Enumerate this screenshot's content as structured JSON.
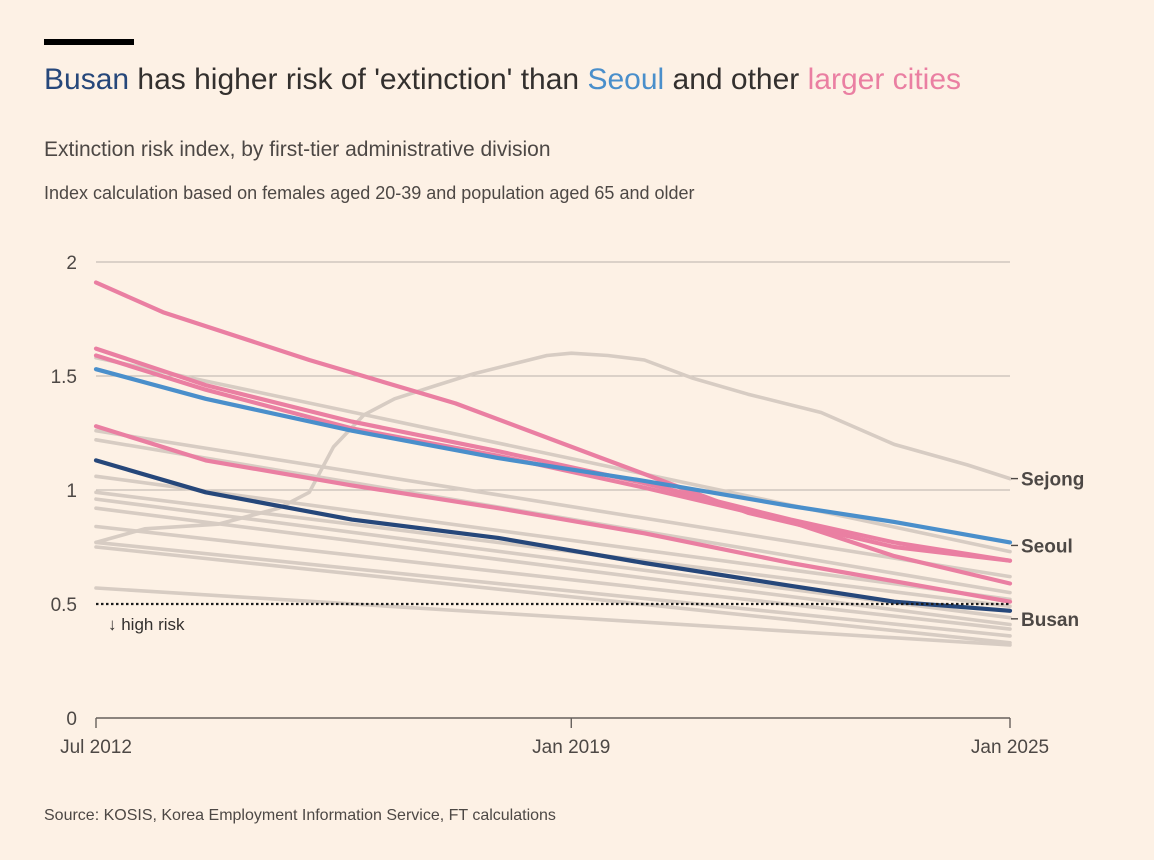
{
  "title": {
    "part1": "Busan",
    "part2": " has higher risk of 'extinction' than ",
    "part3": "Seoul",
    "part4": " and other ",
    "part5": "larger cities"
  },
  "subtitle": "Extinction risk index, by first-tier administrative division",
  "subsubtitle": "Index calculation based on females aged 20-39 and population aged 65 and older",
  "source": "Source: KOSIS, Korea Employment Information Service, FT calculations",
  "colors": {
    "busan": "#26477a",
    "seoul": "#4a8fcb",
    "larger_cities": "#ea7fa2",
    "other": "#d7ccc3",
    "gridline": "#c7beb7",
    "threshold": "#1a1a1a"
  },
  "chart_data": {
    "type": "line",
    "x_start": "2012-07",
    "x_end": "2025-01",
    "xticks": [
      {
        "date": "2012-07",
        "label": "Jul 2012"
      },
      {
        "date": "2019-01",
        "label": "Jan 2019"
      },
      {
        "date": "2025-01",
        "label": "Jan 2025"
      }
    ],
    "ylim": [
      0,
      2
    ],
    "yticks": [
      0,
      0.5,
      1,
      1.5,
      2
    ],
    "ytick_labels": [
      "0",
      "0.5",
      "1",
      "1.5",
      "2"
    ],
    "threshold": {
      "value": 0.5,
      "label": "↓ high risk"
    },
    "series": [
      {
        "name": "",
        "group": "other",
        "points": [
          [
            "2012-07",
            0.57
          ],
          [
            "2025-01",
            0.32
          ]
        ]
      },
      {
        "name": "",
        "group": "other",
        "points": [
          [
            "2012-07",
            0.75
          ],
          [
            "2025-01",
            0.33
          ]
        ]
      },
      {
        "name": "",
        "group": "other",
        "points": [
          [
            "2012-07",
            0.77
          ],
          [
            "2025-01",
            0.36
          ]
        ]
      },
      {
        "name": "",
        "group": "other",
        "points": [
          [
            "2012-07",
            0.84
          ],
          [
            "2025-01",
            0.39
          ]
        ]
      },
      {
        "name": "",
        "group": "other",
        "points": [
          [
            "2012-07",
            0.92
          ],
          [
            "2025-01",
            0.41
          ]
        ]
      },
      {
        "name": "",
        "group": "other",
        "points": [
          [
            "2012-07",
            0.96
          ],
          [
            "2025-01",
            0.44
          ]
        ]
      },
      {
        "name": "",
        "group": "other",
        "points": [
          [
            "2012-07",
            0.99
          ],
          [
            "2025-01",
            0.49
          ]
        ]
      },
      {
        "name": "",
        "group": "other",
        "points": [
          [
            "2012-07",
            1.06
          ],
          [
            "2025-01",
            0.52
          ]
        ]
      },
      {
        "name": "",
        "group": "other",
        "points": [
          [
            "2012-07",
            1.22
          ],
          [
            "2025-01",
            0.55
          ]
        ]
      },
      {
        "name": "",
        "group": "other",
        "points": [
          [
            "2012-07",
            1.26
          ],
          [
            "2025-01",
            0.62
          ]
        ]
      },
      {
        "name": "",
        "group": "other",
        "points": [
          [
            "2012-07",
            1.58
          ],
          [
            "2025-01",
            0.73
          ]
        ]
      },
      {
        "name": "Sejong",
        "group": "sejong",
        "points": [
          [
            "2012-07",
            0.77
          ],
          [
            "2013-03",
            0.83
          ],
          [
            "2014-03",
            0.85
          ],
          [
            "2015-01",
            0.92
          ],
          [
            "2015-06",
            0.99
          ],
          [
            "2015-10",
            1.19
          ],
          [
            "2016-03",
            1.33
          ],
          [
            "2016-08",
            1.4
          ],
          [
            "2017-03",
            1.46
          ],
          [
            "2017-09",
            1.51
          ],
          [
            "2018-03",
            1.55
          ],
          [
            "2018-09",
            1.59
          ],
          [
            "2019-01",
            1.6
          ],
          [
            "2019-07",
            1.59
          ],
          [
            "2020-01",
            1.57
          ],
          [
            "2020-09",
            1.49
          ],
          [
            "2021-06",
            1.42
          ],
          [
            "2022-06",
            1.34
          ],
          [
            "2023-06",
            1.2
          ],
          [
            "2024-06",
            1.11
          ],
          [
            "2025-01",
            1.05
          ]
        ]
      },
      {
        "name": "",
        "group": "larger",
        "points": [
          [
            "2012-07",
            1.91
          ],
          [
            "2013-06",
            1.78
          ],
          [
            "2015-06",
            1.57
          ],
          [
            "2017-06",
            1.38
          ],
          [
            "2019-06",
            1.14
          ],
          [
            "2021-06",
            0.9
          ],
          [
            "2023-06",
            0.75
          ],
          [
            "2025-01",
            0.69
          ]
        ]
      },
      {
        "name": "",
        "group": "larger",
        "points": [
          [
            "2012-07",
            1.62
          ],
          [
            "2014-01",
            1.46
          ],
          [
            "2016-01",
            1.3
          ],
          [
            "2018-01",
            1.17
          ],
          [
            "2020-01",
            1.03
          ],
          [
            "2022-01",
            0.87
          ],
          [
            "2023-06",
            0.77
          ],
          [
            "2025-01",
            0.69
          ]
        ]
      },
      {
        "name": "",
        "group": "larger",
        "points": [
          [
            "2012-07",
            1.59
          ],
          [
            "2014-01",
            1.44
          ],
          [
            "2016-01",
            1.27
          ],
          [
            "2018-01",
            1.15
          ],
          [
            "2020-01",
            1.01
          ],
          [
            "2022-01",
            0.86
          ],
          [
            "2023-06",
            0.71
          ],
          [
            "2025-01",
            0.59
          ]
        ]
      },
      {
        "name": "",
        "group": "larger",
        "points": [
          [
            "2012-07",
            1.28
          ],
          [
            "2014-01",
            1.13
          ],
          [
            "2016-01",
            1.02
          ],
          [
            "2018-01",
            0.92
          ],
          [
            "2020-01",
            0.81
          ],
          [
            "2022-01",
            0.68
          ],
          [
            "2023-06",
            0.6
          ],
          [
            "2025-01",
            0.51
          ]
        ]
      },
      {
        "name": "Seoul",
        "group": "seoul",
        "points": [
          [
            "2012-07",
            1.53
          ],
          [
            "2014-01",
            1.4
          ],
          [
            "2016-01",
            1.26
          ],
          [
            "2018-01",
            1.14
          ],
          [
            "2020-01",
            1.04
          ],
          [
            "2022-01",
            0.93
          ],
          [
            "2023-06",
            0.86
          ],
          [
            "2025-01",
            0.77
          ]
        ]
      },
      {
        "name": "Busan",
        "group": "busan",
        "points": [
          [
            "2012-07",
            1.13
          ],
          [
            "2014-01",
            0.99
          ],
          [
            "2016-01",
            0.87
          ],
          [
            "2018-01",
            0.79
          ],
          [
            "2020-01",
            0.68
          ],
          [
            "2022-01",
            0.58
          ],
          [
            "2023-06",
            0.51
          ],
          [
            "2025-01",
            0.47
          ]
        ]
      }
    ]
  }
}
